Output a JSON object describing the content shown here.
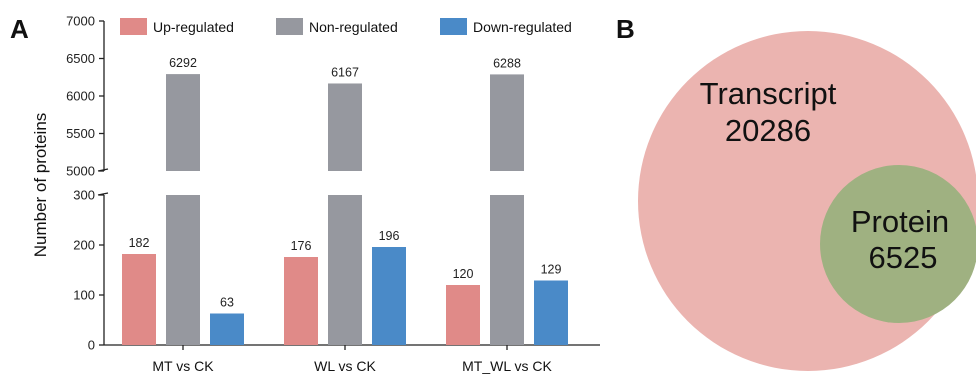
{
  "panels": [
    {
      "letter": "A"
    },
    {
      "letter": "B"
    }
  ],
  "chart_data": [
    {
      "type": "bar",
      "broken_axis": true,
      "y_segments": [
        {
          "range": [
            0,
            300
          ],
          "ticks": [
            0,
            100,
            200,
            300
          ]
        },
        {
          "range": [
            5000,
            7000
          ],
          "ticks": [
            5000,
            5500,
            6000,
            6500,
            7000
          ]
        }
      ],
      "ylabel": "Number of proteins",
      "xlabel": "",
      "categories": [
        "MT vs CK",
        "WL vs CK",
        "MT_WL vs CK"
      ],
      "series": [
        {
          "name": "Up-regulated",
          "color": "#e08a88",
          "values": [
            182,
            176,
            120
          ]
        },
        {
          "name": "Non-regulated",
          "color": "#96989f",
          "values": [
            6292,
            6167,
            6288
          ]
        },
        {
          "name": "Down-regulated",
          "color": "#4a8ac8",
          "values": [
            63,
            196,
            129
          ]
        }
      ],
      "legend_position": "top"
    },
    {
      "type": "venn",
      "sets": [
        {
          "name": "Transcript",
          "value": "20286",
          "color": "#ebb4b0"
        },
        {
          "name": "Protein",
          "value": "6525",
          "color": "#9fb181"
        }
      ]
    }
  ]
}
